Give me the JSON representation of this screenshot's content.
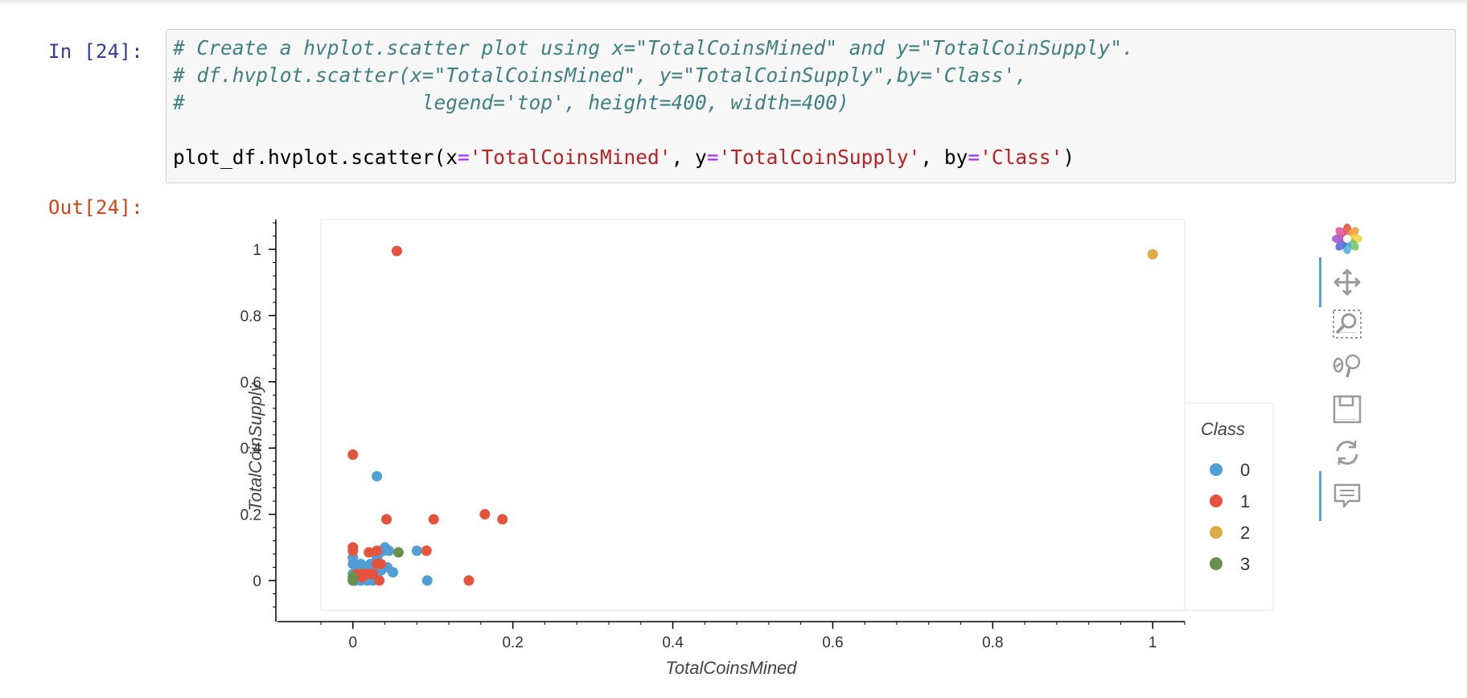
{
  "cell": {
    "in_prompt": "In [24]:",
    "out_prompt": "Out[24]:",
    "code_lines": [
      [
        {
          "t": "comment",
          "v": "# Create a hvplot.scatter plot using x=\"TotalCoinsMined\" and y=\"TotalCoinSupply\"."
        }
      ],
      [
        {
          "t": "comment",
          "v": "# df.hvplot.scatter(x=\"TotalCoinsMined\", y=\"TotalCoinSupply\",by='Class',"
        }
      ],
      [
        {
          "t": "comment",
          "v": "#                    legend='top', height=400, width=400)"
        }
      ],
      [],
      [
        {
          "t": "plain",
          "v": "plot_df.hvplot.scatter(x"
        },
        {
          "t": "op",
          "v": "="
        },
        {
          "t": "str",
          "v": "'TotalCoinsMined'"
        },
        {
          "t": "plain",
          "v": ", y"
        },
        {
          "t": "op",
          "v": "="
        },
        {
          "t": "str",
          "v": "'TotalCoinSupply'"
        },
        {
          "t": "plain",
          "v": ", by"
        },
        {
          "t": "op",
          "v": "="
        },
        {
          "t": "str",
          "v": "'Class'"
        },
        {
          "t": "plain",
          "v": ")"
        }
      ]
    ]
  },
  "toolbar": {
    "tools": [
      {
        "name": "bokeh-logo-icon",
        "active": false
      },
      {
        "name": "pan-icon",
        "active": true
      },
      {
        "name": "box-zoom-icon",
        "active": false
      },
      {
        "name": "wheel-zoom-icon",
        "active": false
      },
      {
        "name": "save-icon",
        "active": false
      },
      {
        "name": "reset-icon",
        "active": false
      },
      {
        "name": "hover-icon",
        "active": true
      }
    ]
  },
  "chart_data": {
    "type": "scatter",
    "title": "",
    "xlabel": "TotalCoinsMined",
    "ylabel": "TotalCoinSupply",
    "xlim": [
      -0.04,
      1.04
    ],
    "ylim": [
      -0.09,
      1.09
    ],
    "xticks": [
      "0",
      "0.2",
      "0.4",
      "0.6",
      "0.8",
      "1"
    ],
    "yticks": [
      "0",
      "0.2",
      "0.4",
      "0.6",
      "0.8",
      "1"
    ],
    "grid": false,
    "legend": {
      "title": "Class",
      "placement": "right"
    },
    "series": [
      {
        "name": "0",
        "color": "#4f9fd6",
        "points": [
          [
            0.0,
            0.0
          ],
          [
            0.0,
            0.01
          ],
          [
            0.0,
            0.02
          ],
          [
            0.0,
            0.05
          ],
          [
            0.0,
            0.07
          ],
          [
            0.003,
            0.0
          ],
          [
            0.005,
            0.01
          ],
          [
            0.008,
            0.03
          ],
          [
            0.01,
            0.0
          ],
          [
            0.01,
            0.05
          ],
          [
            0.012,
            0.02
          ],
          [
            0.015,
            0.04
          ],
          [
            0.018,
            0.0
          ],
          [
            0.02,
            0.01
          ],
          [
            0.022,
            0.05
          ],
          [
            0.025,
            0.0
          ],
          [
            0.028,
            0.03
          ],
          [
            0.03,
            0.05
          ],
          [
            0.03,
            0.07
          ],
          [
            0.032,
            0.08
          ],
          [
            0.035,
            0.03
          ],
          [
            0.038,
            0.09
          ],
          [
            0.04,
            0.1
          ],
          [
            0.043,
            0.04
          ],
          [
            0.045,
            0.09
          ],
          [
            0.05,
            0.025
          ],
          [
            0.03,
            0.315
          ],
          [
            0.08,
            0.09
          ],
          [
            0.093,
            0.0
          ]
        ]
      },
      {
        "name": "1",
        "color": "#e5533c",
        "points": [
          [
            0.055,
            0.995
          ],
          [
            0.0,
            0.38
          ],
          [
            0.0,
            0.1
          ],
          [
            0.0,
            0.09
          ],
          [
            0.005,
            0.02
          ],
          [
            0.01,
            0.02
          ],
          [
            0.012,
            0.01
          ],
          [
            0.015,
            0.02
          ],
          [
            0.02,
            0.02
          ],
          [
            0.02,
            0.085
          ],
          [
            0.025,
            0.02
          ],
          [
            0.03,
            0.09
          ],
          [
            0.03,
            0.05
          ],
          [
            0.033,
            0.0
          ],
          [
            0.035,
            0.05
          ],
          [
            0.042,
            0.185
          ],
          [
            0.092,
            0.09
          ],
          [
            0.101,
            0.185
          ],
          [
            0.145,
            0.0
          ],
          [
            0.165,
            0.2
          ],
          [
            0.187,
            0.185
          ]
        ]
      },
      {
        "name": "2",
        "color": "#e0ab44",
        "points": [
          [
            1.0,
            0.985
          ]
        ]
      },
      {
        "name": "3",
        "color": "#6a904e",
        "points": [
          [
            0.0,
            0.0
          ],
          [
            0.0,
            0.01
          ],
          [
            0.057,
            0.085
          ]
        ]
      }
    ]
  }
}
